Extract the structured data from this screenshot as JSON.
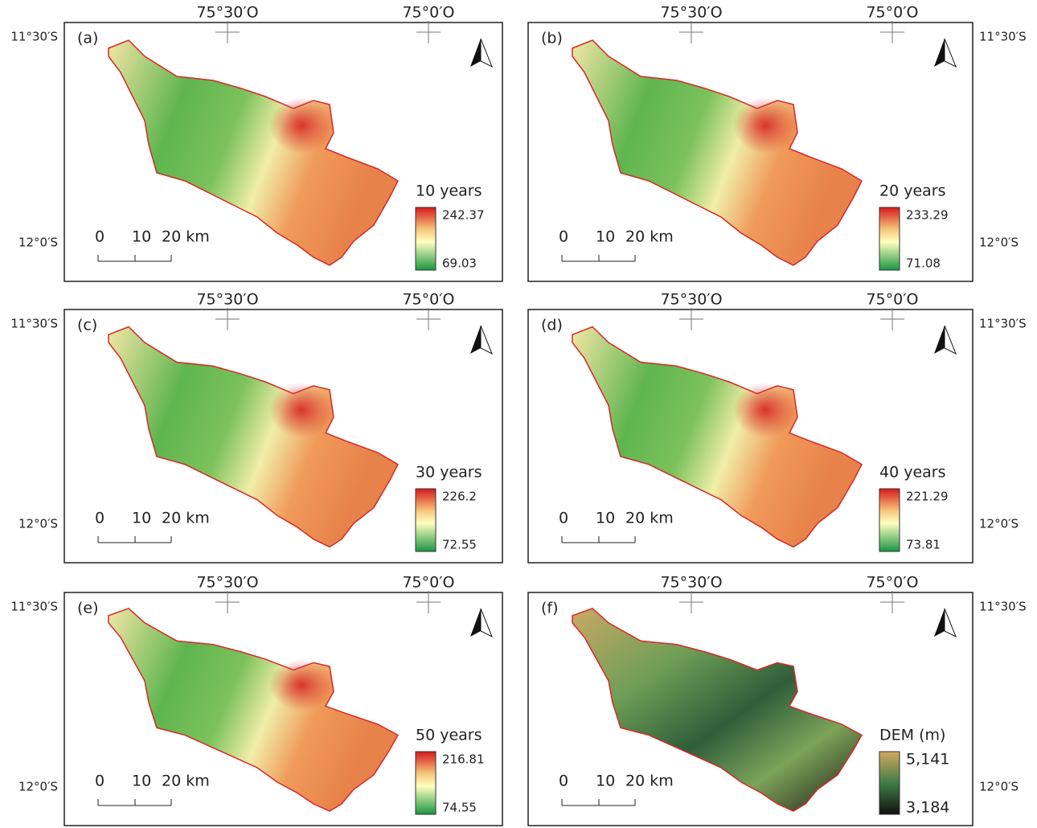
{
  "lon_labels": [
    "75°30′O",
    "75°0′O"
  ],
  "lat_labels": [
    "11°30′S",
    "12°0′S"
  ],
  "scale_labels": [
    "0",
    "10",
    "20 km"
  ],
  "panels": [
    {
      "label": "(a)",
      "legend_title": "10 years",
      "legend_max": "242.37",
      "legend_min": "69.03"
    },
    {
      "label": "(b)",
      "legend_title": "20 years",
      "legend_max": "233.29",
      "legend_min": "71.08"
    },
    {
      "label": "(c)",
      "legend_title": "30 years",
      "legend_max": "226.2",
      "legend_min": "72.55"
    },
    {
      "label": "(d)",
      "legend_title": "40 years",
      "legend_max": "221.29",
      "legend_min": "73.81"
    },
    {
      "label": "(e)",
      "legend_title": "50 years",
      "legend_max": "216.81",
      "legend_min": "74.55"
    },
    {
      "label": "(f)",
      "legend_title": "DEM (m)",
      "legend_max": "5,141",
      "legend_min": "3,184"
    }
  ]
}
